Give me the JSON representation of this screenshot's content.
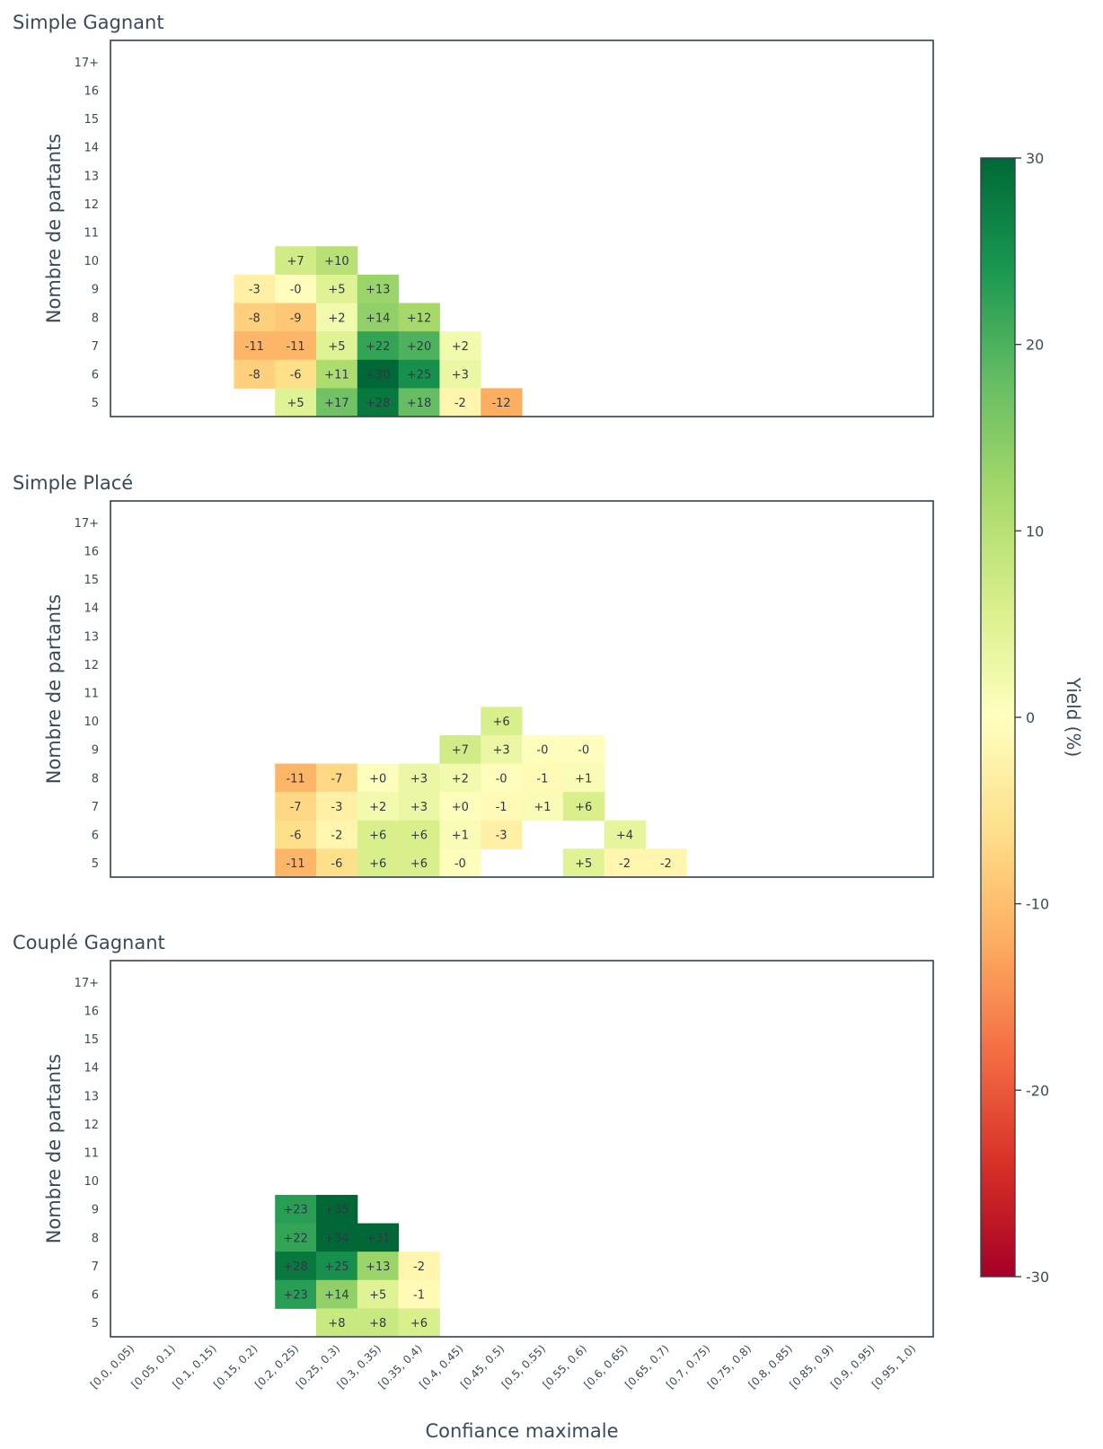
{
  "chart_data": [
    {
      "type": "heatmap",
      "title": "Simple Gagnant",
      "xlabel": "",
      "ylabel": "Nombre de partants",
      "x_categories": [
        "[0.0, 0.05)",
        "[0.05, 0.1)",
        "[0.1, 0.15)",
        "[0.15, 0.2)",
        "[0.2, 0.25)",
        "[0.25, 0.3)",
        "[0.3, 0.35)",
        "[0.35, 0.4)",
        "[0.4, 0.45)",
        "[0.45, 0.5)",
        "[0.5, 0.55)",
        "[0.55, 0.6)",
        "[0.6, 0.65)",
        "[0.65, 0.7)",
        "[0.7, 0.75)",
        "[0.75, 0.8)",
        "[0.8, 0.85)",
        "[0.85, 0.9)",
        "[0.9, 0.95)",
        "[0.95, 1.0)"
      ],
      "y_categories": [
        "17+",
        "16",
        "15",
        "14",
        "13",
        "12",
        "11",
        "10",
        "9",
        "8",
        "7",
        "6",
        "5"
      ],
      "cells": [
        {
          "x": "[0.2, 0.25)",
          "y": "10",
          "value": 7,
          "label": "+7"
        },
        {
          "x": "[0.25, 0.3)",
          "y": "10",
          "value": 10,
          "label": "+10"
        },
        {
          "x": "[0.15, 0.2)",
          "y": "9",
          "value": -3,
          "label": "-3"
        },
        {
          "x": "[0.2, 0.25)",
          "y": "9",
          "value": -0.3,
          "label": "-0"
        },
        {
          "x": "[0.25, 0.3)",
          "y": "9",
          "value": 5,
          "label": "+5"
        },
        {
          "x": "[0.3, 0.35)",
          "y": "9",
          "value": 13,
          "label": "+13"
        },
        {
          "x": "[0.15, 0.2)",
          "y": "8",
          "value": -8,
          "label": "-8"
        },
        {
          "x": "[0.2, 0.25)",
          "y": "8",
          "value": -9,
          "label": "-9"
        },
        {
          "x": "[0.25, 0.3)",
          "y": "8",
          "value": 2,
          "label": "+2"
        },
        {
          "x": "[0.3, 0.35)",
          "y": "8",
          "value": 14,
          "label": "+14"
        },
        {
          "x": "[0.35, 0.4)",
          "y": "8",
          "value": 12,
          "label": "+12"
        },
        {
          "x": "[0.15, 0.2)",
          "y": "7",
          "value": -11,
          "label": "-11"
        },
        {
          "x": "[0.2, 0.25)",
          "y": "7",
          "value": -11,
          "label": "-11"
        },
        {
          "x": "[0.25, 0.3)",
          "y": "7",
          "value": 5,
          "label": "+5"
        },
        {
          "x": "[0.3, 0.35)",
          "y": "7",
          "value": 22,
          "label": "+22"
        },
        {
          "x": "[0.35, 0.4)",
          "y": "7",
          "value": 20,
          "label": "+20"
        },
        {
          "x": "[0.4, 0.45)",
          "y": "7",
          "value": 2,
          "label": "+2"
        },
        {
          "x": "[0.15, 0.2)",
          "y": "6",
          "value": -8,
          "label": "-8"
        },
        {
          "x": "[0.2, 0.25)",
          "y": "6",
          "value": -6,
          "label": "-6"
        },
        {
          "x": "[0.25, 0.3)",
          "y": "6",
          "value": 11,
          "label": "+11"
        },
        {
          "x": "[0.3, 0.35)",
          "y": "6",
          "value": 30,
          "label": "+30"
        },
        {
          "x": "[0.35, 0.4)",
          "y": "6",
          "value": 25,
          "label": "+25"
        },
        {
          "x": "[0.4, 0.45)",
          "y": "6",
          "value": 3,
          "label": "+3"
        },
        {
          "x": "[0.2, 0.25)",
          "y": "5",
          "value": 5,
          "label": "+5"
        },
        {
          "x": "[0.25, 0.3)",
          "y": "5",
          "value": 17,
          "label": "+17"
        },
        {
          "x": "[0.3, 0.35)",
          "y": "5",
          "value": 28,
          "label": "+28"
        },
        {
          "x": "[0.35, 0.4)",
          "y": "5",
          "value": 18,
          "label": "+18"
        },
        {
          "x": "[0.4, 0.45)",
          "y": "5",
          "value": -2,
          "label": "-2"
        },
        {
          "x": "[0.45, 0.5)",
          "y": "5",
          "value": -12,
          "label": "-12"
        }
      ]
    },
    {
      "type": "heatmap",
      "title": "Simple Placé",
      "xlabel": "",
      "ylabel": "Nombre de partants",
      "x_categories": [
        "[0.0, 0.05)",
        "[0.05, 0.1)",
        "[0.1, 0.15)",
        "[0.15, 0.2)",
        "[0.2, 0.25)",
        "[0.25, 0.3)",
        "[0.3, 0.35)",
        "[0.35, 0.4)",
        "[0.4, 0.45)",
        "[0.45, 0.5)",
        "[0.5, 0.55)",
        "[0.55, 0.6)",
        "[0.6, 0.65)",
        "[0.65, 0.7)",
        "[0.7, 0.75)",
        "[0.75, 0.8)",
        "[0.8, 0.85)",
        "[0.85, 0.9)",
        "[0.9, 0.95)",
        "[0.95, 1.0)"
      ],
      "y_categories": [
        "17+",
        "16",
        "15",
        "14",
        "13",
        "12",
        "11",
        "10",
        "9",
        "8",
        "7",
        "6",
        "5"
      ],
      "cells": [
        {
          "x": "[0.45, 0.5)",
          "y": "10",
          "value": 6,
          "label": "+6"
        },
        {
          "x": "[0.4, 0.45)",
          "y": "9",
          "value": 7,
          "label": "+7"
        },
        {
          "x": "[0.45, 0.5)",
          "y": "9",
          "value": 3,
          "label": "+3"
        },
        {
          "x": "[0.5, 0.55)",
          "y": "9",
          "value": -0.3,
          "label": "-0"
        },
        {
          "x": "[0.55, 0.6)",
          "y": "9",
          "value": -0.3,
          "label": "-0"
        },
        {
          "x": "[0.2, 0.25)",
          "y": "8",
          "value": -11,
          "label": "-11"
        },
        {
          "x": "[0.25, 0.3)",
          "y": "8",
          "value": -7,
          "label": "-7"
        },
        {
          "x": "[0.3, 0.35)",
          "y": "8",
          "value": 0.3,
          "label": "+0"
        },
        {
          "x": "[0.35, 0.4)",
          "y": "8",
          "value": 3,
          "label": "+3"
        },
        {
          "x": "[0.4, 0.45)",
          "y": "8",
          "value": 2,
          "label": "+2"
        },
        {
          "x": "[0.45, 0.5)",
          "y": "8",
          "value": -0.3,
          "label": "-0"
        },
        {
          "x": "[0.5, 0.55)",
          "y": "8",
          "value": -1,
          "label": "-1"
        },
        {
          "x": "[0.55, 0.6)",
          "y": "8",
          "value": 1,
          "label": "+1"
        },
        {
          "x": "[0.2, 0.25)",
          "y": "7",
          "value": -7,
          "label": "-7"
        },
        {
          "x": "[0.25, 0.3)",
          "y": "7",
          "value": -3,
          "label": "-3"
        },
        {
          "x": "[0.3, 0.35)",
          "y": "7",
          "value": 2,
          "label": "+2"
        },
        {
          "x": "[0.35, 0.4)",
          "y": "7",
          "value": 3,
          "label": "+3"
        },
        {
          "x": "[0.4, 0.45)",
          "y": "7",
          "value": 0.3,
          "label": "+0"
        },
        {
          "x": "[0.45, 0.5)",
          "y": "7",
          "value": -1,
          "label": "-1"
        },
        {
          "x": "[0.5, 0.55)",
          "y": "7",
          "value": 1,
          "label": "+1"
        },
        {
          "x": "[0.55, 0.6)",
          "y": "7",
          "value": 6,
          "label": "+6"
        },
        {
          "x": "[0.2, 0.25)",
          "y": "6",
          "value": -6,
          "label": "-6"
        },
        {
          "x": "[0.25, 0.3)",
          "y": "6",
          "value": -2,
          "label": "-2"
        },
        {
          "x": "[0.3, 0.35)",
          "y": "6",
          "value": 6,
          "label": "+6"
        },
        {
          "x": "[0.35, 0.4)",
          "y": "6",
          "value": 6,
          "label": "+6"
        },
        {
          "x": "[0.4, 0.45)",
          "y": "6",
          "value": 1,
          "label": "+1"
        },
        {
          "x": "[0.45, 0.5)",
          "y": "6",
          "value": -3,
          "label": "-3"
        },
        {
          "x": "[0.6, 0.65)",
          "y": "6",
          "value": 4,
          "label": "+4"
        },
        {
          "x": "[0.2, 0.25)",
          "y": "5",
          "value": -11,
          "label": "-11"
        },
        {
          "x": "[0.25, 0.3)",
          "y": "5",
          "value": -6,
          "label": "-6"
        },
        {
          "x": "[0.3, 0.35)",
          "y": "5",
          "value": 6,
          "label": "+6"
        },
        {
          "x": "[0.35, 0.4)",
          "y": "5",
          "value": 6,
          "label": "+6"
        },
        {
          "x": "[0.4, 0.45)",
          "y": "5",
          "value": -0.3,
          "label": "-0"
        },
        {
          "x": "[0.55, 0.6)",
          "y": "5",
          "value": 5,
          "label": "+5"
        },
        {
          "x": "[0.6, 0.65)",
          "y": "5",
          "value": -2,
          "label": "-2"
        },
        {
          "x": "[0.65, 0.7)",
          "y": "5",
          "value": -2,
          "label": "-2"
        }
      ]
    },
    {
      "type": "heatmap",
      "title": "Couplé Gagnant",
      "xlabel": "Confiance maximale",
      "ylabel": "Nombre de partants",
      "x_categories": [
        "[0.0, 0.05)",
        "[0.05, 0.1)",
        "[0.1, 0.15)",
        "[0.15, 0.2)",
        "[0.2, 0.25)",
        "[0.25, 0.3)",
        "[0.3, 0.35)",
        "[0.35, 0.4)",
        "[0.4, 0.45)",
        "[0.45, 0.5)",
        "[0.5, 0.55)",
        "[0.55, 0.6)",
        "[0.6, 0.65)",
        "[0.65, 0.7)",
        "[0.7, 0.75)",
        "[0.75, 0.8)",
        "[0.8, 0.85)",
        "[0.85, 0.9)",
        "[0.9, 0.95)",
        "[0.95, 1.0)"
      ],
      "y_categories": [
        "17+",
        "16",
        "15",
        "14",
        "13",
        "12",
        "11",
        "10",
        "9",
        "8",
        "7",
        "6",
        "5"
      ],
      "cells": [
        {
          "x": "[0.2, 0.25)",
          "y": "9",
          "value": 23,
          "label": "+23"
        },
        {
          "x": "[0.25, 0.3)",
          "y": "9",
          "value": 35,
          "label": "+35"
        },
        {
          "x": "[0.2, 0.25)",
          "y": "8",
          "value": 22,
          "label": "+22"
        },
        {
          "x": "[0.25, 0.3)",
          "y": "8",
          "value": 34,
          "label": "+34"
        },
        {
          "x": "[0.3, 0.35)",
          "y": "8",
          "value": 31,
          "label": "+31"
        },
        {
          "x": "[0.2, 0.25)",
          "y": "7",
          "value": 28,
          "label": "+28"
        },
        {
          "x": "[0.25, 0.3)",
          "y": "7",
          "value": 25,
          "label": "+25"
        },
        {
          "x": "[0.3, 0.35)",
          "y": "7",
          "value": 13,
          "label": "+13"
        },
        {
          "x": "[0.35, 0.4)",
          "y": "7",
          "value": -2,
          "label": "-2"
        },
        {
          "x": "[0.2, 0.25)",
          "y": "6",
          "value": 23,
          "label": "+23"
        },
        {
          "x": "[0.25, 0.3)",
          "y": "6",
          "value": 14,
          "label": "+14"
        },
        {
          "x": "[0.3, 0.35)",
          "y": "6",
          "value": 5,
          "label": "+5"
        },
        {
          "x": "[0.35, 0.4)",
          "y": "6",
          "value": -1,
          "label": "-1"
        },
        {
          "x": "[0.25, 0.3)",
          "y": "5",
          "value": 8,
          "label": "+8"
        },
        {
          "x": "[0.3, 0.35)",
          "y": "5",
          "value": 8,
          "label": "+8"
        },
        {
          "x": "[0.35, 0.4)",
          "y": "5",
          "value": 6,
          "label": "+6"
        }
      ]
    }
  ],
  "colorbar": {
    "label": "Yield (%)",
    "range": [
      -30,
      30
    ],
    "ticks": [
      "-30",
      "-20",
      "-10",
      "0",
      "10",
      "20",
      "30"
    ],
    "colormap": "RdYlGn"
  },
  "style": {
    "frame_color": "#34404f",
    "text_color": "#3b4a5a"
  }
}
